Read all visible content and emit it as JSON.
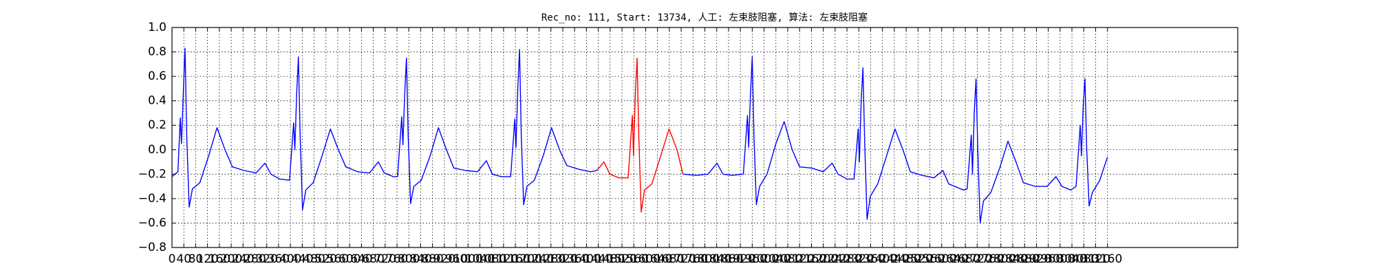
{
  "chart_data": {
    "type": "line",
    "title": "Rec_no: 111, Start: 13734, 人工: 左束肢阻塞, 算法: 左束肢阻塞",
    "xlim": [
      0,
      3600
    ],
    "xticks": [
      0,
      40,
      80,
      120,
      160,
      200,
      240,
      280,
      320,
      360,
      400,
      440,
      480,
      520,
      560,
      600,
      640,
      680,
      720,
      760,
      800,
      840,
      880,
      920,
      960,
      1000,
      1040,
      1080,
      1120,
      1160,
      1200,
      1240,
      1280,
      1320,
      1360,
      1400,
      1440,
      1480,
      1520,
      1560,
      1600,
      1640,
      1680,
      1720,
      1760,
      1800,
      1840,
      1880,
      1920,
      1960,
      2000,
      2040,
      2080,
      2120,
      2160,
      2200,
      2240,
      2280,
      2320,
      2360,
      2400,
      2440,
      2480,
      2520,
      2560,
      2600,
      2640,
      2680,
      2720,
      2760,
      2800,
      2840,
      2880,
      2920,
      2960,
      3000,
      3040,
      3080,
      3120,
      3160
    ],
    "ylim": [
      -0.8,
      1.0
    ],
    "yticks": [
      {
        "value": -0.8,
        "label": "−0.8"
      },
      {
        "value": -0.6,
        "label": "−0.6"
      },
      {
        "value": -0.4,
        "label": "−0.4"
      },
      {
        "value": -0.2,
        "label": "−0.2"
      },
      {
        "value": 0.0,
        "label": "0.0"
      },
      {
        "value": 0.2,
        "label": "0.2"
      },
      {
        "value": 0.4,
        "label": "0.4"
      },
      {
        "value": 0.6,
        "label": "0.6"
      },
      {
        "value": 0.8,
        "label": "0.8"
      },
      {
        "value": 1.0,
        "label": "1.0"
      }
    ],
    "grid": true,
    "series": [
      {
        "color": "#0000ff",
        "x": [
          0,
          20,
          28,
          32,
          38,
          44,
          50,
          58,
          69,
          94,
          124,
          152,
          179,
          204,
          244,
          284,
          314,
          334,
          364,
          397,
          411,
          415,
          421,
          427,
          433,
          441,
          452,
          477,
          507,
          535,
          562,
          587,
          627,
          667,
          697,
          717,
          747,
          762,
          776,
          780,
          786,
          792,
          798,
          806,
          817,
          842,
          872,
          900,
          927,
          952,
          992,
          1032,
          1062,
          1082,
          1112,
          1144,
          1158,
          1162,
          1168,
          1174,
          1180,
          1188,
          1199,
          1224,
          1254,
          1282,
          1309,
          1334,
          1374,
          1414,
          1435
        ],
        "values": [
          -0.22,
          -0.18,
          0.26,
          0.05,
          0.45,
          0.83,
          0.1,
          -0.47,
          -0.32,
          -0.27,
          -0.05,
          0.18,
          0.0,
          -0.14,
          -0.17,
          -0.19,
          -0.11,
          -0.2,
          -0.24,
          -0.25,
          0.22,
          0.0,
          0.45,
          0.76,
          0.1,
          -0.49,
          -0.33,
          -0.27,
          -0.05,
          0.17,
          0.0,
          -0.14,
          -0.18,
          -0.19,
          -0.1,
          -0.19,
          -0.22,
          -0.22,
          0.27,
          0.04,
          0.45,
          0.75,
          0.1,
          -0.44,
          -0.3,
          -0.25,
          -0.05,
          0.18,
          0.0,
          -0.15,
          -0.17,
          -0.18,
          -0.09,
          -0.2,
          -0.22,
          -0.22,
          0.25,
          0.02,
          0.5,
          0.82,
          0.1,
          -0.45,
          -0.3,
          -0.25,
          -0.05,
          0.18,
          0.0,
          -0.13,
          -0.16,
          -0.18,
          -0.17
        ]
      },
      {
        "color": "#ff0000",
        "x": [
          1435,
          1459,
          1479,
          1510,
          1541,
          1555,
          1559,
          1565,
          1571,
          1577,
          1585,
          1596,
          1621,
          1651,
          1679,
          1706,
          1726
        ],
        "values": [
          -0.17,
          -0.1,
          -0.2,
          -0.23,
          -0.23,
          0.28,
          -0.05,
          0.45,
          0.75,
          0.1,
          -0.51,
          -0.33,
          -0.28,
          -0.05,
          0.17,
          0.0,
          -0.2
        ]
      },
      {
        "color": "#0000ff",
        "x": [
          1726,
          1771,
          1811,
          1841,
          1861,
          1891,
          1930,
          1944,
          1948,
          1954,
          1960,
          1966,
          1974,
          1985,
          2010,
          2040,
          2068,
          2095,
          2120,
          2160,
          2200,
          2230,
          2250,
          2280,
          2304,
          2318,
          2322,
          2328,
          2334,
          2340,
          2348,
          2359,
          2384,
          2414,
          2442,
          2469,
          2494,
          2534,
          2574,
          2604,
          2624,
          2674,
          2686,
          2700,
          2704,
          2710,
          2716,
          2722,
          2730,
          2741,
          2766,
          2796,
          2824,
          2851,
          2876,
          2916,
          2956,
          2986,
          3006,
          3036,
          3054,
          3068,
          3072,
          3078,
          3084,
          3090,
          3098,
          3109,
          3134,
          3160
        ],
        "values": [
          -0.2,
          -0.21,
          -0.2,
          -0.11,
          -0.2,
          -0.21,
          -0.2,
          0.28,
          0.02,
          0.45,
          0.76,
          0.1,
          -0.45,
          -0.3,
          -0.2,
          0.05,
          0.23,
          0.0,
          -0.14,
          -0.15,
          -0.18,
          -0.11,
          -0.2,
          -0.24,
          -0.24,
          0.17,
          -0.1,
          0.4,
          0.67,
          0.05,
          -0.57,
          -0.38,
          -0.28,
          -0.05,
          0.17,
          0.0,
          -0.18,
          -0.21,
          -0.23,
          -0.17,
          -0.28,
          -0.33,
          -0.32,
          0.12,
          -0.2,
          0.3,
          0.58,
          0.0,
          -0.6,
          -0.42,
          -0.35,
          -0.15,
          0.07,
          -0.1,
          -0.27,
          -0.3,
          -0.3,
          -0.22,
          -0.3,
          -0.33,
          -0.3,
          0.2,
          -0.05,
          0.35,
          0.58,
          0.0,
          -0.46,
          -0.35,
          -0.25,
          -0.06
        ]
      }
    ]
  }
}
